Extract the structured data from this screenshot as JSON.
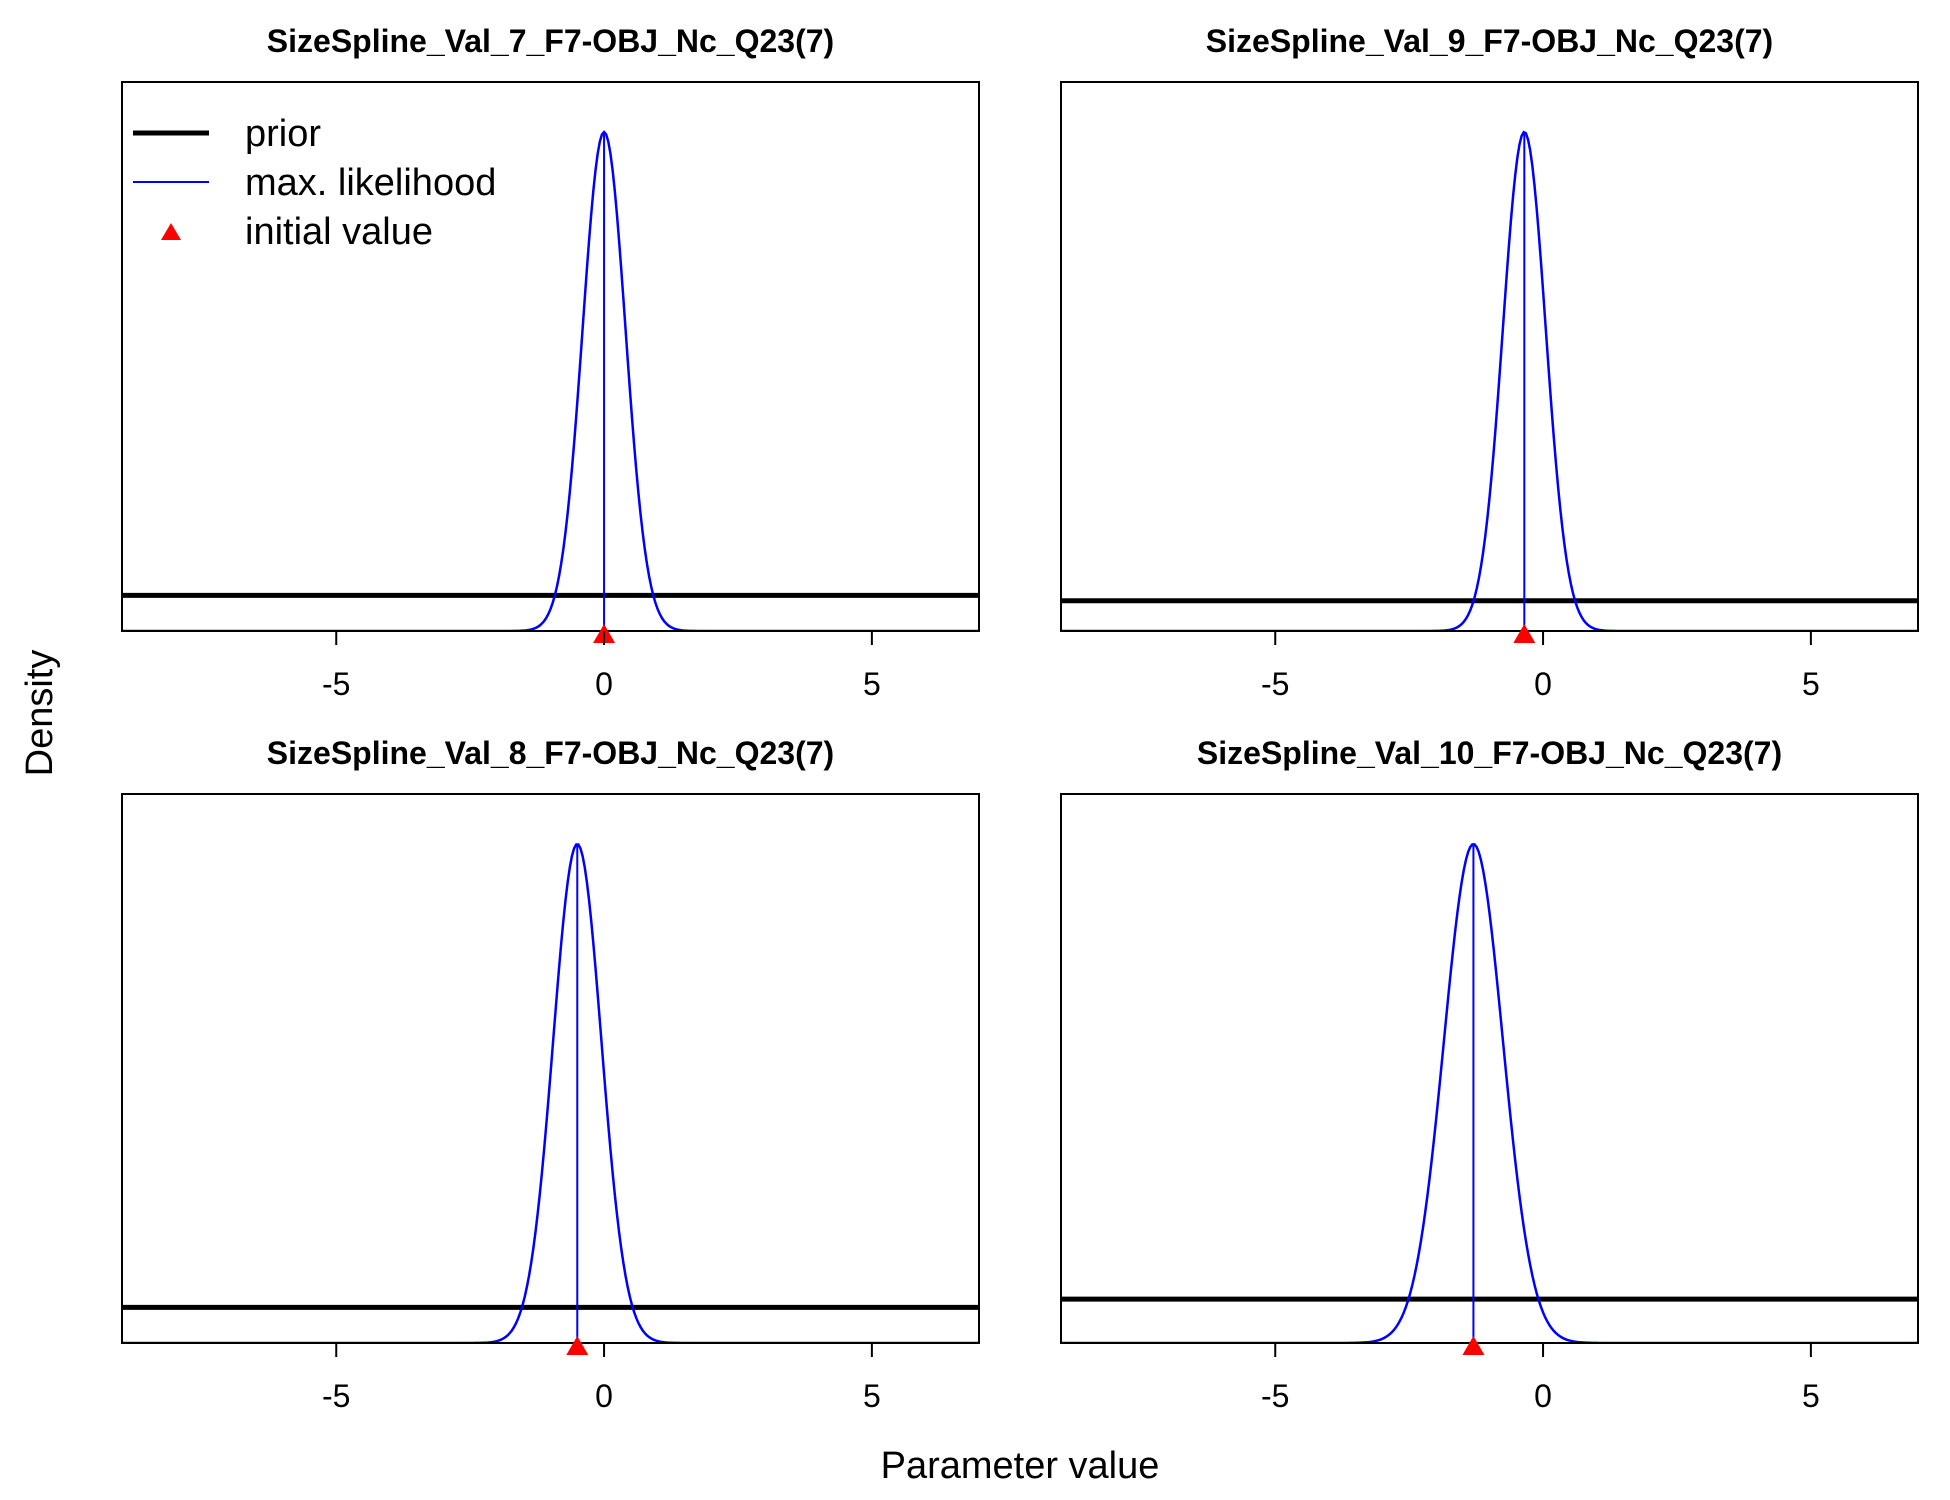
{
  "figure": {
    "ylabel": "Density",
    "xlabel": "Parameter value"
  },
  "legend": {
    "placement": "top-left of first panel",
    "items": [
      {
        "label": "prior",
        "color": "#000000",
        "kind": "thick-line"
      },
      {
        "label": "max. likelihood",
        "color": "#0000ff",
        "kind": "thin-line"
      },
      {
        "label": "initial value",
        "color": "#ff0000",
        "kind": "triangle"
      }
    ]
  },
  "colors": {
    "prior": "#000000",
    "mle": "#0000ff",
    "initial": "#ff0000"
  },
  "chart_data": [
    {
      "type": "line",
      "title": "SizeSpline_Val_7_F7-OBJ_Nc_Q23(7)",
      "xlim": [
        -9,
        7
      ],
      "xticks": [
        -5,
        0,
        5
      ],
      "mle_mean": 0.0,
      "mle_sd": 0.4,
      "initial_value": 0.0,
      "prior_level_fraction": 0.065
    },
    {
      "type": "line",
      "title": "SizeSpline_Val_9_F7-OBJ_Nc_Q23(7)",
      "xlim": [
        -9,
        7
      ],
      "xticks": [
        -5,
        0,
        5
      ],
      "mle_mean": -0.35,
      "mle_sd": 0.4,
      "initial_value": -0.35,
      "prior_level_fraction": 0.055
    },
    {
      "type": "line",
      "title": "SizeSpline_Val_8_F7-OBJ_Nc_Q23(7)",
      "xlim": [
        -9,
        7
      ],
      "xticks": [
        -5,
        0,
        5
      ],
      "mle_mean": -0.5,
      "mle_sd": 0.45,
      "initial_value": -0.5,
      "prior_level_fraction": 0.065
    },
    {
      "type": "line",
      "title": "SizeSpline_Val_10_F7-OBJ_Nc_Q23(7)",
      "xlim": [
        -9,
        7
      ],
      "xticks": [
        -5,
        0,
        5
      ],
      "mle_mean": -1.3,
      "mle_sd": 0.55,
      "initial_value": -1.3,
      "prior_level_fraction": 0.08
    }
  ]
}
